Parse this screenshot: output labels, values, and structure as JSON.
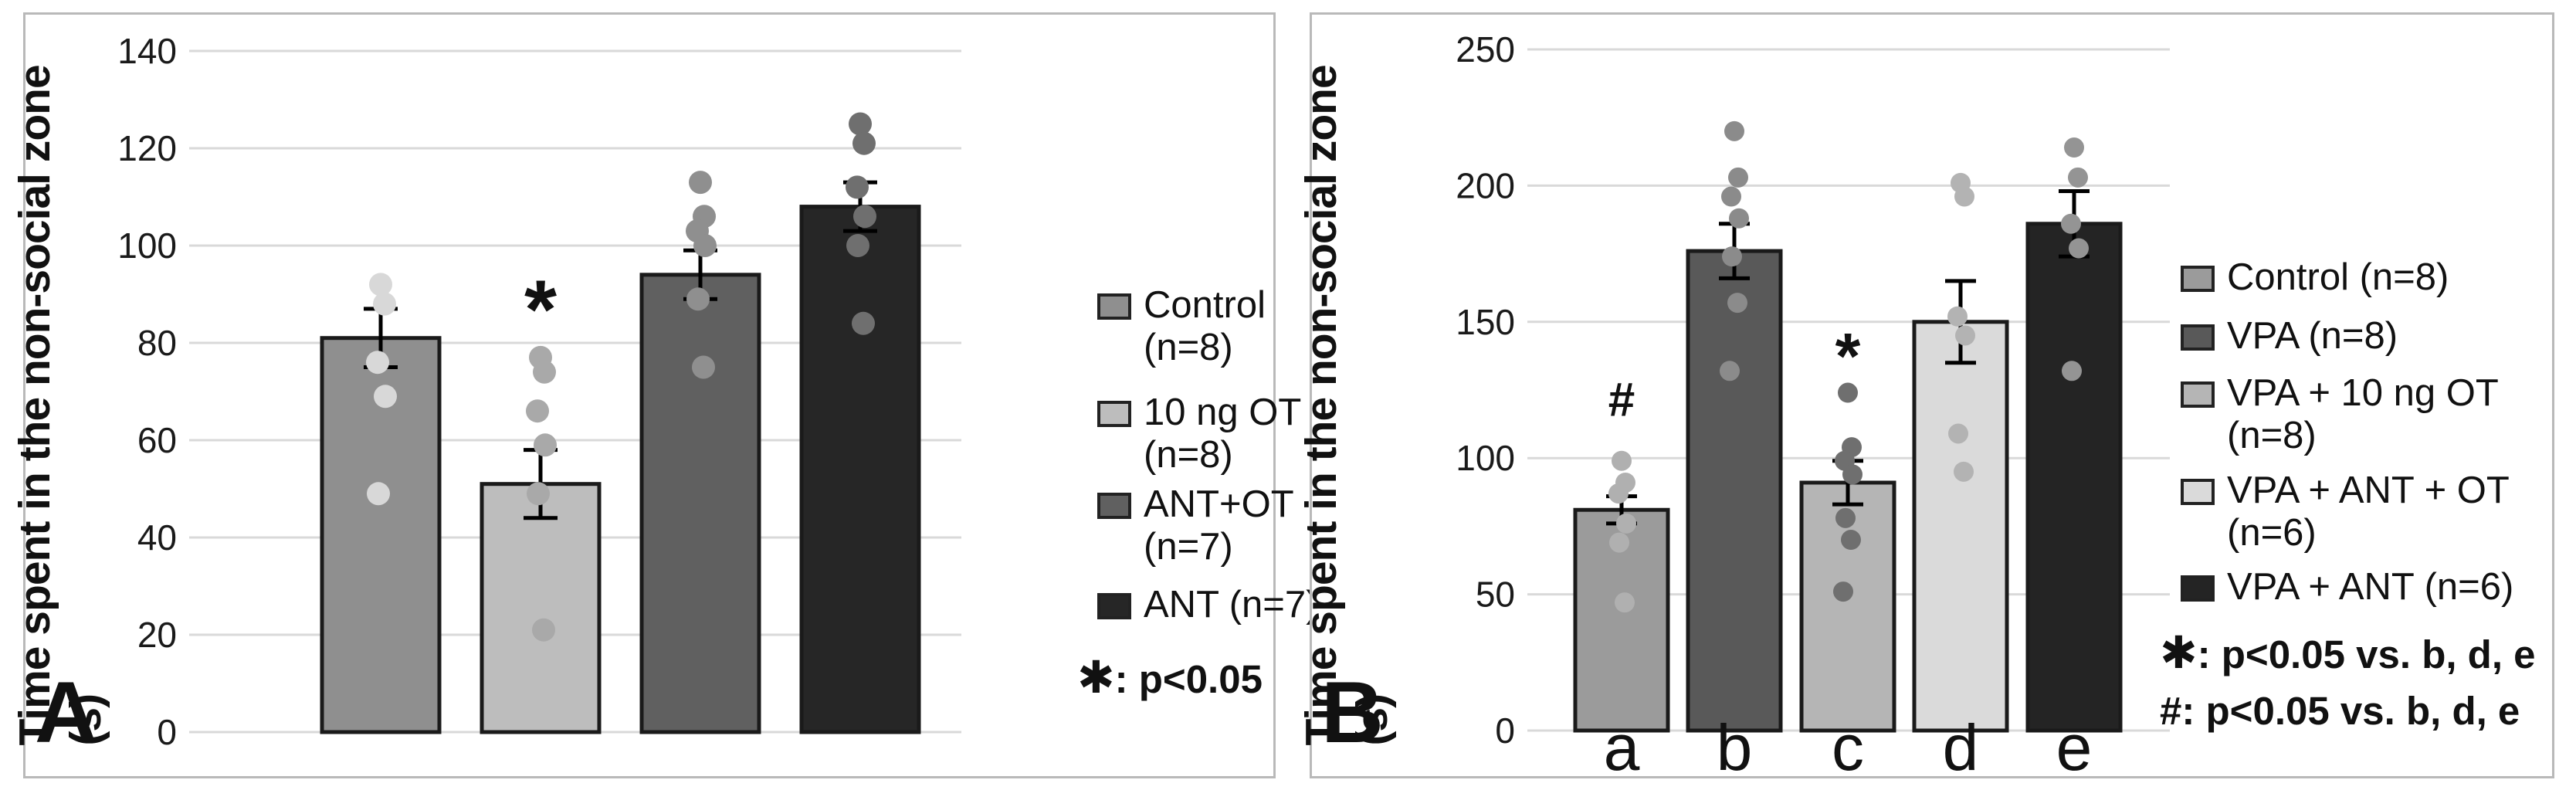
{
  "figure": {
    "panel_a_label": "A",
    "panel_b_label": "B",
    "y_axis_title": "Time spent in the non-social zone (s)"
  },
  "chart_data": [
    {
      "type": "bar",
      "panel_label": "A",
      "title": "",
      "xlabel": "",
      "ylabel": "Time spent in the non-social zone (s)",
      "ylim": [
        0,
        140
      ],
      "yticks": [
        0,
        20,
        40,
        60,
        80,
        100,
        120,
        140
      ],
      "grid": true,
      "legend_position": "right",
      "error_bars": "SEM",
      "categories": [
        "Control (n=8)",
        "10 ng OT (n=8)",
        "ANT+OT (n=7)",
        "ANT (n=7)"
      ],
      "series": [
        {
          "name": "Control (n=8)",
          "legend_lines": [
            "Control",
            "(n=8)"
          ],
          "mean": 81,
          "sem": 6,
          "points": [
            92,
            88,
            76,
            69,
            49
          ],
          "fill": "#8f8f8f",
          "dot_color": "#d8d8d8",
          "sig": ""
        },
        {
          "name": "10 ng OT (n=8)",
          "legend_lines": [
            "10 ng OT",
            "(n=8)"
          ],
          "mean": 51,
          "sem": 7,
          "points": [
            77,
            74,
            66,
            59,
            49,
            21
          ],
          "fill": "#bdbdbd",
          "dot_color": "#a9a9a9",
          "sig": "*",
          "sig_value": 91
        },
        {
          "name": "ANT+OT (n=7)",
          "legend_lines": [
            "ANT+OT",
            "(n=7)"
          ],
          "mean": 94,
          "sem": 5,
          "points": [
            113,
            106,
            103,
            100,
            89,
            75
          ],
          "fill": "#606060",
          "dot_color": "#8f8f8f",
          "sig": ""
        },
        {
          "name": "ANT (n=7)",
          "legend_lines": [
            "ANT (n=7)"
          ],
          "mean": 108,
          "sem": 5,
          "points": [
            125,
            121,
            112,
            106,
            100,
            84
          ],
          "fill": "#262626",
          "dot_color": "#6f6f6f",
          "sig": ""
        }
      ],
      "notes": [
        "✱: p<0.05"
      ]
    },
    {
      "type": "bar",
      "panel_label": "B",
      "title": "",
      "xlabel": "",
      "ylabel": "Time spent in the non-social zone (s)",
      "ylim": [
        0,
        250
      ],
      "yticks": [
        0,
        50,
        100,
        150,
        200,
        250
      ],
      "grid": true,
      "legend_position": "right",
      "error_bars": "SEM",
      "categories": [
        "a",
        "b",
        "c",
        "d",
        "e"
      ],
      "series": [
        {
          "name": "Control (n=8)",
          "legend_lines": [
            "Control (n=8)"
          ],
          "category": "a",
          "mean": 81,
          "sem": 5,
          "points": [
            99,
            91,
            87,
            76,
            69,
            47
          ],
          "fill": "#9b9b9b",
          "dot_color": "#b0b0b0",
          "sig": "#",
          "sig_value": 121
        },
        {
          "name": "VPA (n=8)",
          "legend_lines": [
            "VPA (n=8)"
          ],
          "category": "b",
          "mean": 176,
          "sem": 10,
          "points": [
            220,
            203,
            196,
            188,
            174,
            157,
            132
          ],
          "fill": "#595959",
          "dot_color": "#8b8b8b",
          "sig": ""
        },
        {
          "name": "VPA + 10 ng OT (n=8)",
          "legend_lines": [
            "VPA + 10 ng OT",
            "(n=8)"
          ],
          "category": "c",
          "mean": 91,
          "sem": 8,
          "points": [
            124,
            104,
            99,
            94,
            78,
            70,
            51
          ],
          "fill": "#b5b5b5",
          "dot_color": "#6f6f6f",
          "sig": "*",
          "sig_value": 143
        },
        {
          "name": "VPA + ANT + OT (n=6)",
          "legend_lines": [
            "VPA + ANT + OT",
            "(n=6)"
          ],
          "category": "d",
          "mean": 150,
          "sem": 15,
          "points": [
            201,
            196,
            152,
            145,
            109,
            95
          ],
          "fill": "#dadada",
          "dot_color": "#b3b3b3",
          "sig": ""
        },
        {
          "name": "VPA + ANT (n=6)",
          "legend_lines": [
            "VPA + ANT (n=6)"
          ],
          "category": "e",
          "mean": 186,
          "sem": 12,
          "points": [
            214,
            203,
            186,
            177,
            132
          ],
          "fill": "#242424",
          "dot_color": "#949494",
          "sig": ""
        }
      ],
      "notes": [
        "✱: p<0.05 vs. b, d, e",
        "#: p<0.05 vs. b, d, e"
      ]
    }
  ]
}
